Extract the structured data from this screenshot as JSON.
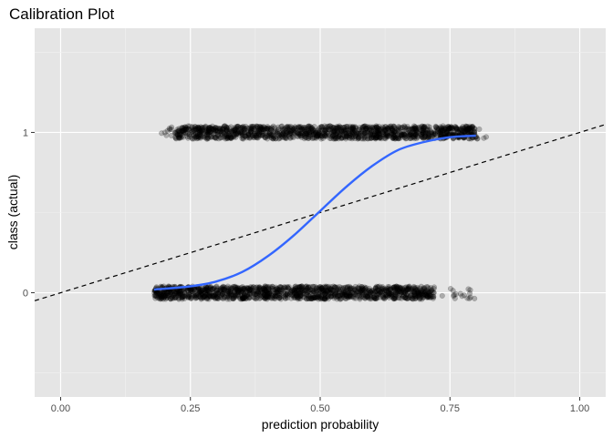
{
  "chart_data": {
    "type": "scatter",
    "title": "Calibration Plot",
    "xlabel": "prediction probability",
    "ylabel": "class (actual)",
    "xlim": [
      -0.05,
      1.05
    ],
    "ylim": [
      -0.65,
      1.65
    ],
    "x_ticks": [
      0.0,
      0.25,
      0.5,
      0.75,
      1.0
    ],
    "x_tick_labels": [
      "0.00",
      "0.25",
      "0.50",
      "0.75",
      "1.00"
    ],
    "y_ticks": [
      0,
      1
    ],
    "y_tick_labels": [
      "0",
      "1"
    ],
    "grid": true,
    "legend": "none",
    "points": [
      {
        "class": 1,
        "x_range": [
          0.19,
          0.82
        ],
        "dense_range": [
          0.22,
          0.8
        ],
        "jitter": 0.04
      },
      {
        "class": 0,
        "x_range": [
          0.18,
          0.8
        ],
        "dense_range": [
          0.18,
          0.72
        ],
        "jitter": 0.04
      }
    ],
    "smooth_curve": {
      "color": "#3366ff",
      "x": [
        0.18,
        0.25,
        0.3,
        0.35,
        0.4,
        0.45,
        0.5,
        0.55,
        0.6,
        0.65,
        0.7,
        0.75,
        0.8
      ],
      "y": [
        0.02,
        0.04,
        0.07,
        0.13,
        0.23,
        0.36,
        0.51,
        0.66,
        0.79,
        0.89,
        0.94,
        0.97,
        0.98
      ]
    },
    "reference_line": {
      "slope": 1,
      "intercept": 0,
      "style": "dashed",
      "color": "#000000"
    }
  }
}
